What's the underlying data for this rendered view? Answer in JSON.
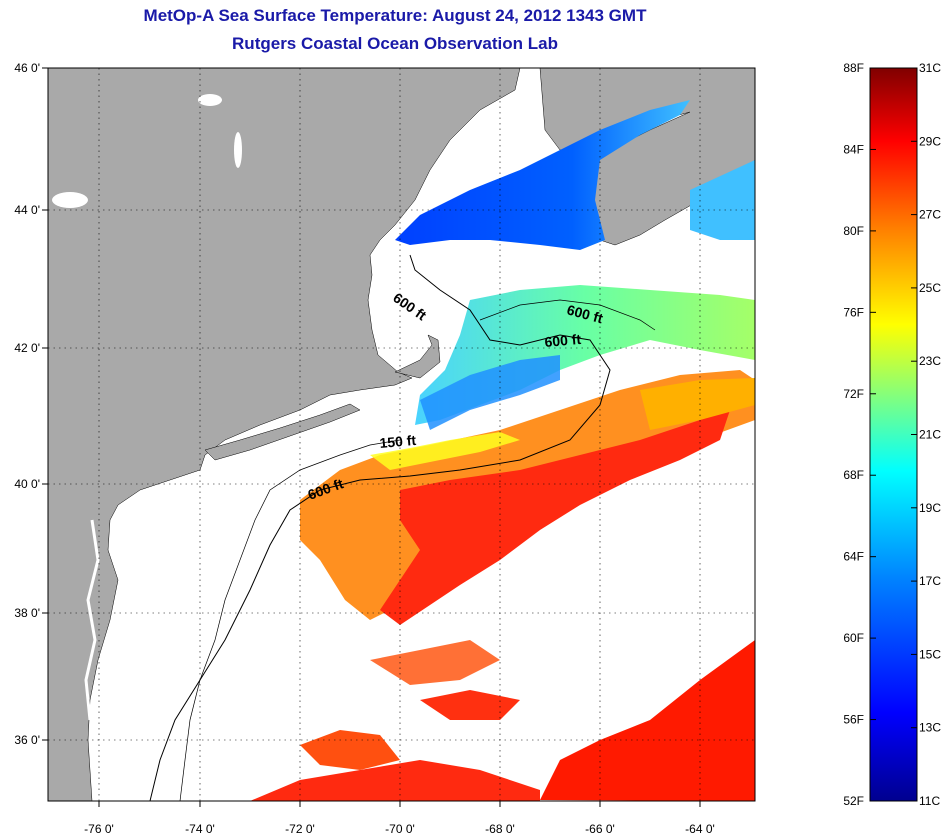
{
  "header": {
    "title": "MetOp-A Sea Surface Temperature:  August 24, 2012 1343 GMT",
    "subtitle": "Rutgers Coastal Ocean Observation Lab"
  },
  "map": {
    "lon_ticks": [
      "-76 0'",
      "-74 0'",
      "-72 0'",
      "-70 0'",
      "-68 0'",
      "-66 0'",
      "-64 0'"
    ],
    "lat_ticks": [
      "46 0'",
      "44 0'",
      "42 0'",
      "40 0'",
      "38 0'",
      "36 0'"
    ],
    "contour_labels": [
      "600 ft",
      "600 ft",
      "600 ft",
      "150 ft",
      "600 ft"
    ],
    "colors": {
      "land": "#a9a9a9",
      "no_data": "#ffffff",
      "grid": "#000000"
    }
  },
  "colorbar": {
    "fahrenheit": [
      "88F",
      "84F",
      "80F",
      "76F",
      "72F",
      "68F",
      "64F",
      "60F",
      "56F",
      "52F"
    ],
    "celsius": [
      "31C",
      "29C",
      "27C",
      "25C",
      "23C",
      "21C",
      "19C",
      "17C",
      "15C",
      "13C",
      "11C"
    ],
    "stops": [
      "#00008f",
      "#0000ff",
      "#0080ff",
      "#00ffff",
      "#80ff80",
      "#ffff00",
      "#ff8000",
      "#ff0000",
      "#800000"
    ]
  }
}
